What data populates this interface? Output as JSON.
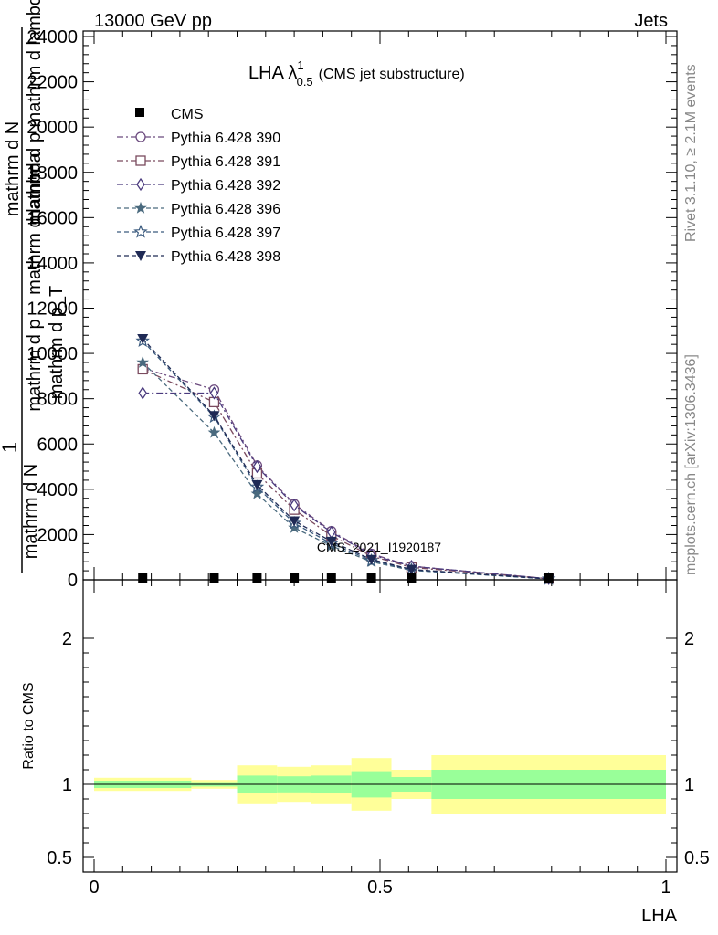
{
  "header": {
    "left": "13000 GeV pp",
    "right": "Jets"
  },
  "side_labels": {
    "rivet": "Rivet 3.1.10, ≥ 2.1M events",
    "mcplots": "mcplots.cern.ch [arXiv:1306.3436]"
  },
  "watermark": "CMS_2021_I1920187",
  "chart_data": {
    "type": "line",
    "title": "LHA λ",
    "title_sup": "1",
    "title_sub": "0.5",
    "title_suffix": "(CMS jet substructure)",
    "xlabel": "LHA",
    "ylabel_lines": [
      "1",
      "mathrm d N",
      "mathrm d p mathrm d lambda",
      "mathrm d N",
      "mathrm d p",
      "mathrm d lambda",
      "mathrm d p_T"
    ],
    "ratio_ylabel": "Ratio to CMS",
    "xlim": [
      0,
      1
    ],
    "ylim": [
      0,
      24000
    ],
    "xticks": [
      "0",
      "0.5",
      "1"
    ],
    "yticks": [
      "0",
      "2000",
      "4000",
      "6000",
      "8000",
      "10000",
      "12000",
      "14000",
      "16000",
      "18000",
      "20000",
      "22000",
      "24000"
    ],
    "ratio_ylim": [
      0.4,
      2.4
    ],
    "ratio_yticks": [
      "0.5",
      "1",
      "2"
    ],
    "ratio_ytick_values": [
      0.5,
      1,
      2
    ],
    "data_name": "CMS",
    "data": {
      "x": [
        0.085,
        0.21,
        0.285,
        0.35,
        0.415,
        0.485,
        0.555,
        0.795
      ],
      "y": [
        0,
        0,
        0,
        0,
        0,
        0,
        0,
        0
      ]
    },
    "series": [
      {
        "name": "Pythia 6.428 390",
        "color": "#6b4a7e",
        "dash": "7,3,2,3",
        "marker": "circle-open",
        "x": [
          0.085,
          0.21,
          0.285,
          0.35,
          0.415,
          0.485,
          0.555,
          0.795
        ],
        "y": [
          9350,
          8400,
          5050,
          3350,
          2150,
          1150,
          600,
          50
        ]
      },
      {
        "name": "Pythia 6.428 391",
        "color": "#7a4a5e",
        "dash": "7,3,2,3",
        "marker": "square-open",
        "x": [
          0.085,
          0.21,
          0.285,
          0.35,
          0.415,
          0.485,
          0.555,
          0.795
        ],
        "y": [
          9300,
          7850,
          4700,
          3100,
          1950,
          1050,
          550,
          50
        ]
      },
      {
        "name": "Pythia 6.428 392",
        "color": "#4a3a7e",
        "dash": "7,3,2,3",
        "marker": "diamond-open",
        "x": [
          0.085,
          0.21,
          0.285,
          0.35,
          0.415,
          0.485,
          0.555,
          0.795
        ],
        "y": [
          8250,
          8250,
          5000,
          3300,
          2100,
          1100,
          600,
          50
        ]
      },
      {
        "name": "Pythia 6.428 396",
        "color": "#4a6a7e",
        "dash": "5,3",
        "marker": "star-filled",
        "x": [
          0.085,
          0.21,
          0.285,
          0.35,
          0.415,
          0.485,
          0.555,
          0.795
        ],
        "y": [
          9600,
          6500,
          3800,
          2300,
          1500,
          800,
          420,
          40
        ]
      },
      {
        "name": "Pythia 6.428 397",
        "color": "#3a5a7e",
        "dash": "5,3",
        "marker": "star-open",
        "x": [
          0.085,
          0.21,
          0.285,
          0.35,
          0.415,
          0.485,
          0.555,
          0.795
        ],
        "y": [
          10550,
          7200,
          4100,
          2500,
          1600,
          850,
          440,
          40
        ]
      },
      {
        "name": "Pythia 6.428 398",
        "color": "#1f2a55",
        "dash": "5,3",
        "marker": "triangle-down-filled",
        "x": [
          0.085,
          0.21,
          0.285,
          0.35,
          0.415,
          0.485,
          0.555,
          0.795
        ],
        "y": [
          10650,
          7250,
          4200,
          2600,
          1700,
          900,
          460,
          40
        ]
      }
    ],
    "ratio_bands": [
      {
        "x0": 0.0,
        "x1": 0.17,
        "yellow": [
          0.955,
          1.045
        ],
        "green": [
          0.975,
          1.025
        ]
      },
      {
        "x0": 0.17,
        "x1": 0.25,
        "yellow": [
          0.97,
          1.03
        ],
        "green": [
          0.985,
          1.015
        ]
      },
      {
        "x0": 0.25,
        "x1": 0.32,
        "yellow": [
          0.87,
          1.13
        ],
        "green": [
          0.94,
          1.06
        ]
      },
      {
        "x0": 0.32,
        "x1": 0.38,
        "yellow": [
          0.88,
          1.12
        ],
        "green": [
          0.945,
          1.055
        ]
      },
      {
        "x0": 0.38,
        "x1": 0.45,
        "yellow": [
          0.87,
          1.13
        ],
        "green": [
          0.94,
          1.06
        ]
      },
      {
        "x0": 0.45,
        "x1": 0.52,
        "yellow": [
          0.82,
          1.18
        ],
        "green": [
          0.91,
          1.09
        ]
      },
      {
        "x0": 0.52,
        "x1": 0.59,
        "yellow": [
          0.9,
          1.1
        ],
        "green": [
          0.95,
          1.05
        ]
      },
      {
        "x0": 0.59,
        "x1": 1.0,
        "yellow": [
          0.8,
          1.2
        ],
        "green": [
          0.9,
          1.1
        ]
      }
    ],
    "colors": {
      "green": "#99ff99",
      "yellow": "#ffff99"
    }
  }
}
